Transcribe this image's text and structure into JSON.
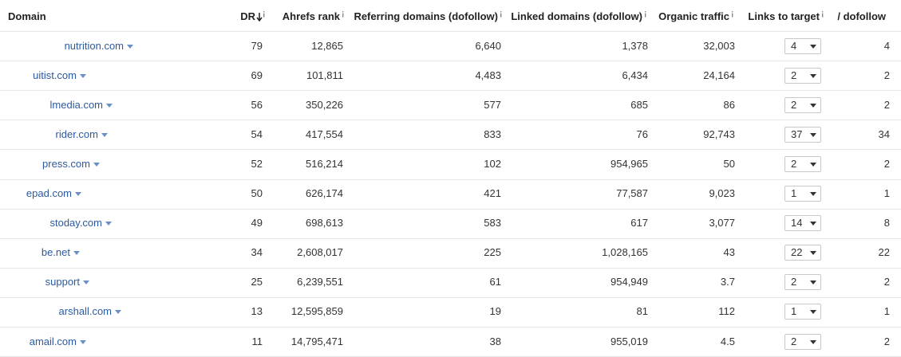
{
  "table": {
    "headers": [
      "Domain",
      "DR",
      "Ahrefs rank",
      "Referring domains (dofollow)",
      "Linked domains (dofollow)",
      "Organic traffic",
      "Links to target",
      "/ dofollow"
    ],
    "rows": [
      [
        "nutrition.com",
        "79",
        "12,865",
        "6,640",
        "1,378",
        "32,003",
        "4",
        "4"
      ],
      [
        "uitist.com",
        "69",
        "101,811",
        "4,483",
        "6,434",
        "24,164",
        "2",
        "2"
      ],
      [
        "lmedia.com",
        "56",
        "350,226",
        "577",
        "685",
        "86",
        "2",
        "2"
      ],
      [
        "rider.com",
        "54",
        "417,554",
        "833",
        "76",
        "92,743",
        "37",
        "34"
      ],
      [
        "press.com",
        "52",
        "516,214",
        "102",
        "954,965",
        "50",
        "2",
        "2"
      ],
      [
        "epad.com",
        "50",
        "626,174",
        "421",
        "77,587",
        "9,023",
        "1",
        "1"
      ],
      [
        "stoday.com",
        "49",
        "698,613",
        "583",
        "617",
        "3,077",
        "14",
        "8"
      ],
      [
        "be.net",
        "34",
        "2,608,017",
        "225",
        "1,028,165",
        "43",
        "22",
        "22"
      ],
      [
        "support",
        "25",
        "6,239,551",
        "61",
        "954,949",
        "3.7",
        "2",
        "2"
      ],
      [
        "arshall.com",
        "13",
        "12,595,859",
        "19",
        "81",
        "112",
        "1",
        "1"
      ],
      [
        "amail.com",
        "11",
        "14,795,471",
        "38",
        "955,019",
        "4.5",
        "2",
        "2"
      ]
    ]
  }
}
